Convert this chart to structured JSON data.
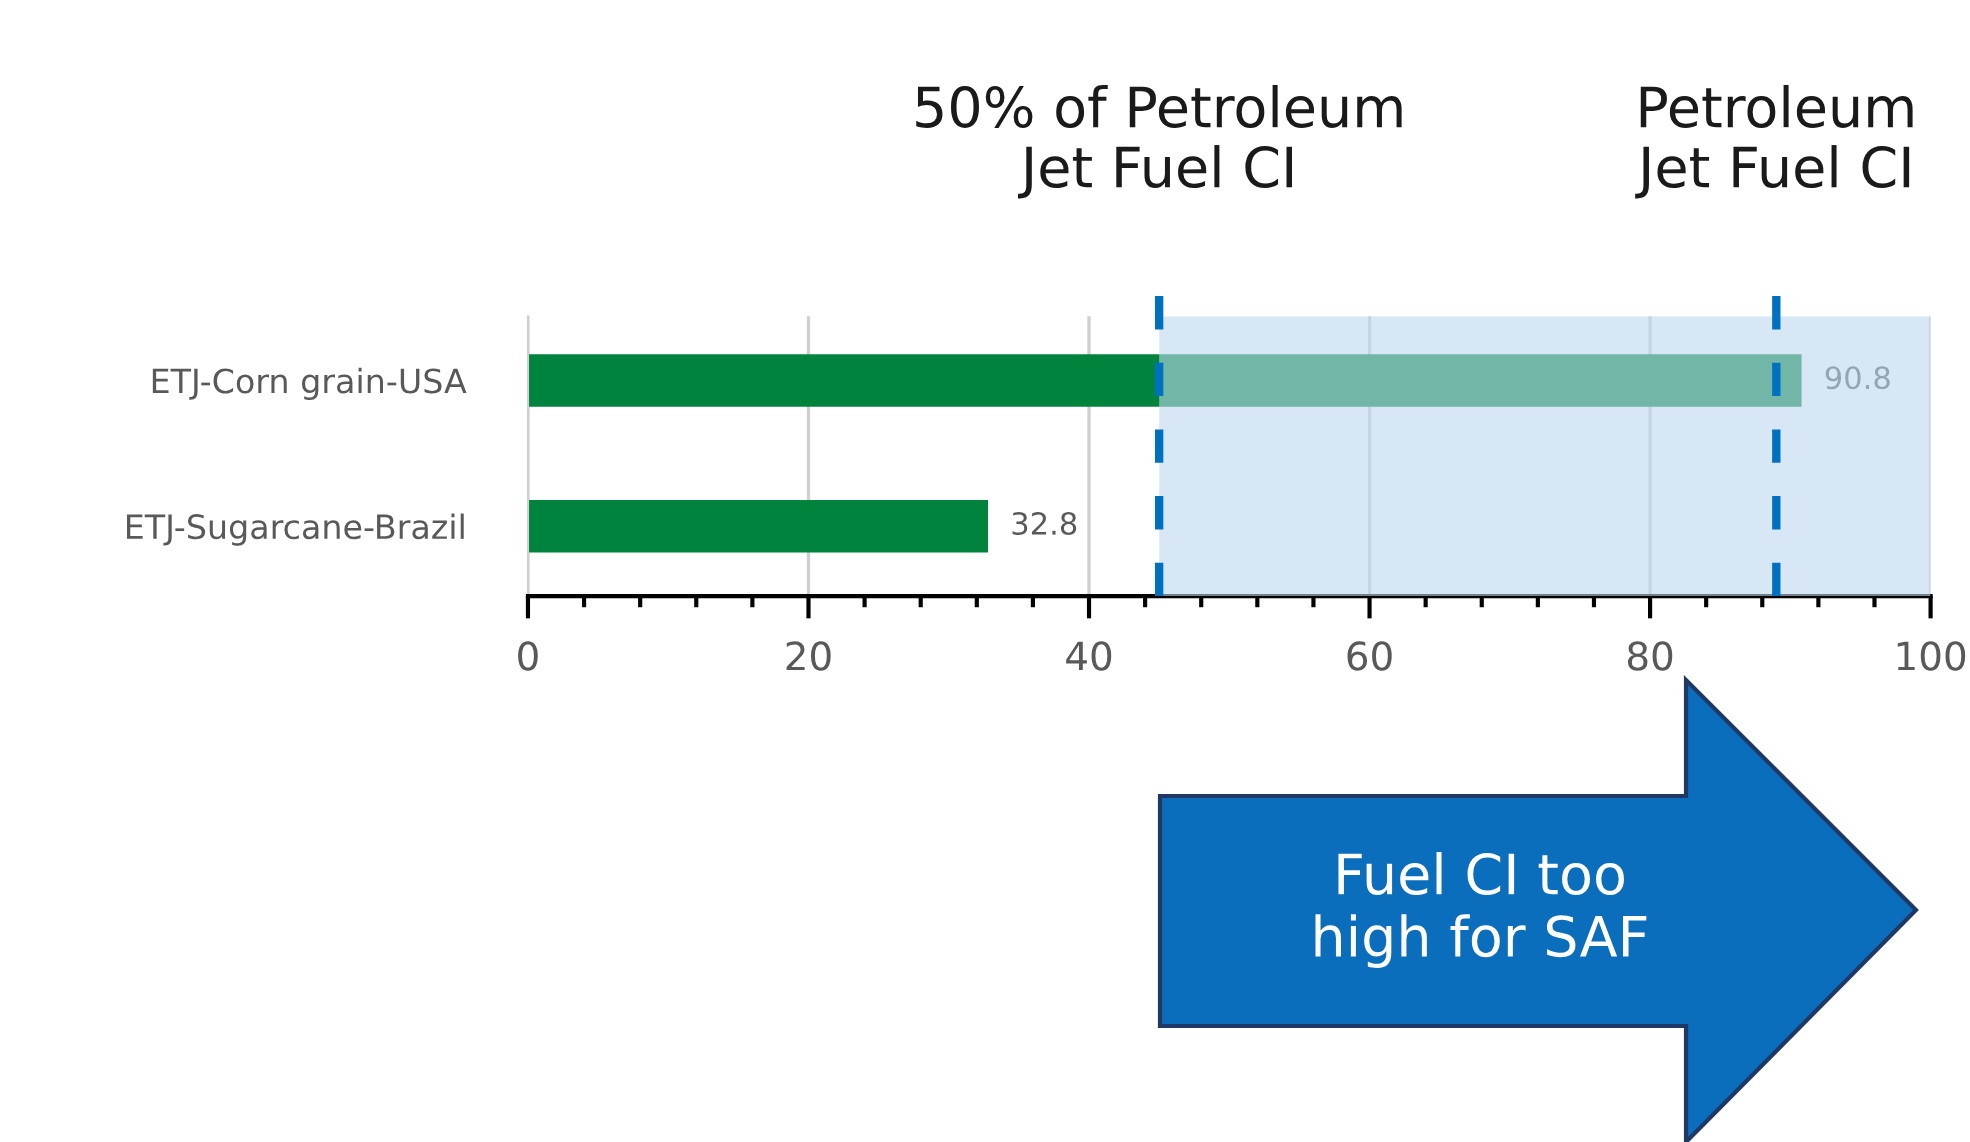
{
  "chart_data": {
    "type": "bar",
    "orientation": "horizontal",
    "categories": [
      "ETJ-Corn grain-USA",
      "ETJ-Sugarcane-Brazil"
    ],
    "values": [
      90.8,
      32.8
    ],
    "color": "#00843d",
    "data_labels": true,
    "xlim": [
      0,
      100
    ],
    "xticks": [
      0,
      20,
      40,
      60,
      80,
      100
    ],
    "grid": "x",
    "ref_lines": [
      {
        "axis": "x",
        "value": 45,
        "label": "50% of Petroleum\nJet Fuel CI",
        "color": "#0070c0",
        "line_style": "dashed"
      },
      {
        "axis": "x",
        "value": 89,
        "label": "Petroleum\nJet Fuel CI",
        "color": "#0070c0",
        "line_style": "dashed"
      }
    ],
    "bands": [
      {
        "axis": "x",
        "from": 45,
        "to": 100,
        "color": "#bdd7ee"
      }
    ],
    "annotations": [
      "Fuel CI too\nhigh for SAF"
    ]
  }
}
